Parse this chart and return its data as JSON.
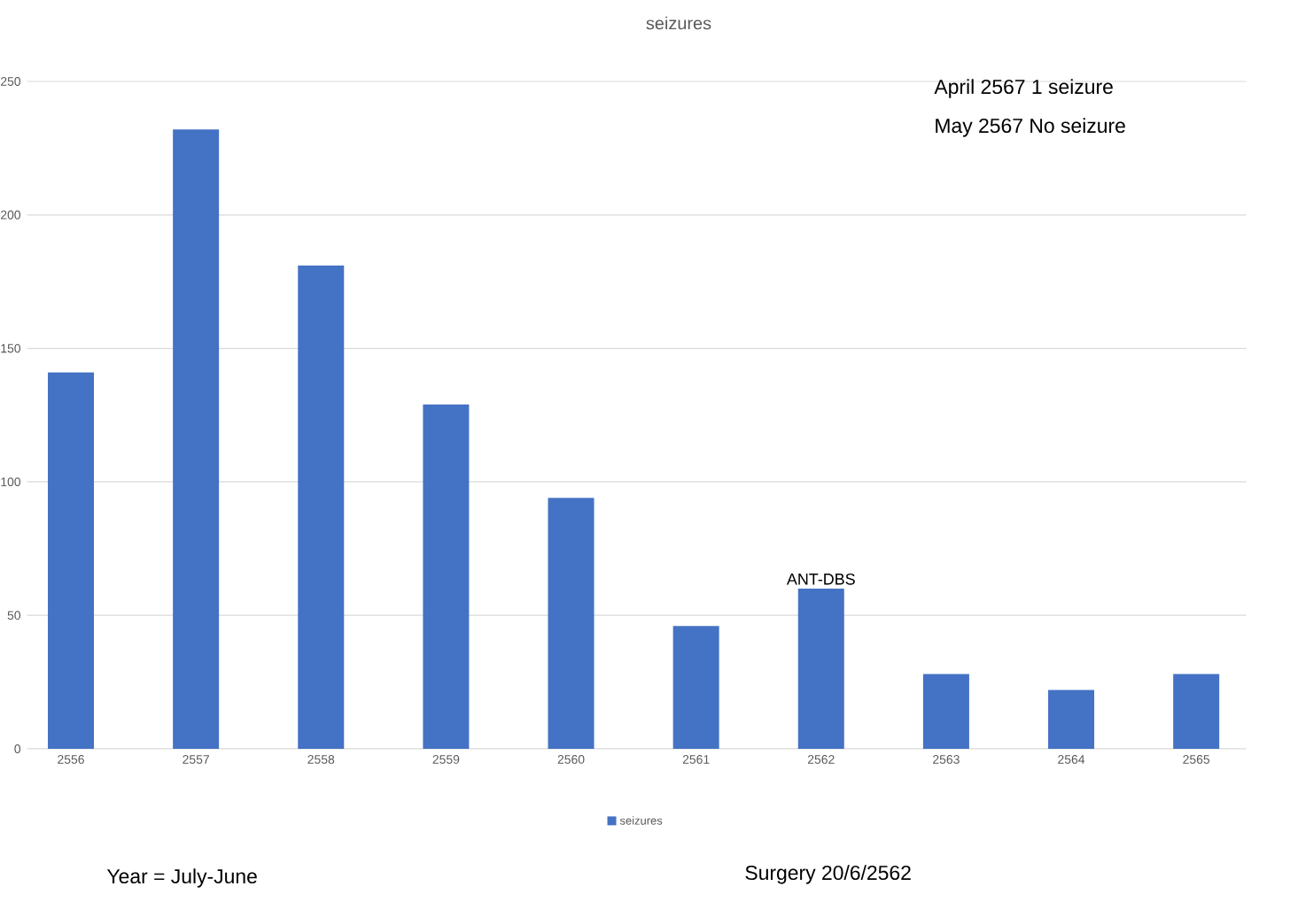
{
  "chart_data": {
    "type": "bar",
    "title": "seizures",
    "categories": [
      "2556",
      "2557",
      "2558",
      "2559",
      "2560",
      "2561",
      "2562",
      "2563",
      "2564",
      "2565"
    ],
    "series": [
      {
        "name": "seizures",
        "color": "#4472c4",
        "values": [
          141,
          232,
          181,
          129,
          94,
          46,
          60,
          28,
          22,
          28
        ]
      }
    ],
    "ylim": [
      0,
      250
    ],
    "yticks": [
      0,
      50,
      100,
      150,
      200,
      250
    ],
    "grid": "y",
    "legend": "bottom",
    "annotations": [
      "April 2567 1 seizure",
      "May 2567 No seizure",
      {
        "text": "ANT-DBS",
        "x": "2562",
        "y": 60
      },
      "Year = July-June",
      "Surgery 20/6/2562"
    ]
  }
}
